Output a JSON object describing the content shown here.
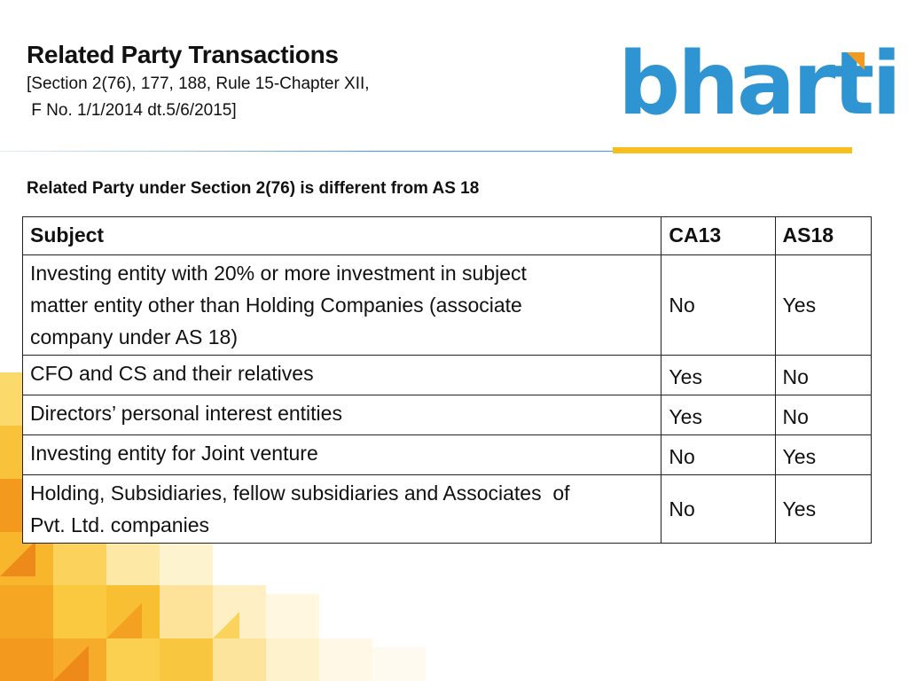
{
  "slide": {
    "title": "Related Party Transactions",
    "subtitle_line1": "[Section 2(76), 177, 188, Rule 15-Chapter XII,",
    "subtitle_line2": " F No. 1/1/2014 dt.5/6/2015]",
    "section_heading": "Related Party under Section 2(76) is different from AS 18"
  },
  "logo": {
    "text": "bharti",
    "brand_blue": "#2f95d2",
    "accent_yellow": "#f7bf1d",
    "accent_orange": "#f39a1e"
  },
  "table": {
    "headers": [
      "Subject",
      "CA13",
      "AS18"
    ],
    "rows": [
      {
        "subject_lines": [
          "Investing entity with 20% or more investment in subject",
          "matter entity other than Holding Companies (associate",
          "company under AS 18)"
        ],
        "ca13": "No",
        "as18": "Yes"
      },
      {
        "subject_lines": [
          "CFO and CS and their relatives"
        ],
        "ca13": "Yes",
        "as18": "No"
      },
      {
        "subject_lines": [
          "Directors’ personal interest entities"
        ],
        "ca13": "Yes",
        "as18": "No"
      },
      {
        "subject_lines": [
          "Investing entity for Joint venture"
        ],
        "ca13": "No",
        "as18": "Yes"
      },
      {
        "subject_lines": [
          "Holding, Subsidiaries, fellow subsidiaries and Associates  of",
          "Pvt. Ltd. companies"
        ],
        "ca13": "No",
        "as18": "Yes"
      }
    ]
  }
}
